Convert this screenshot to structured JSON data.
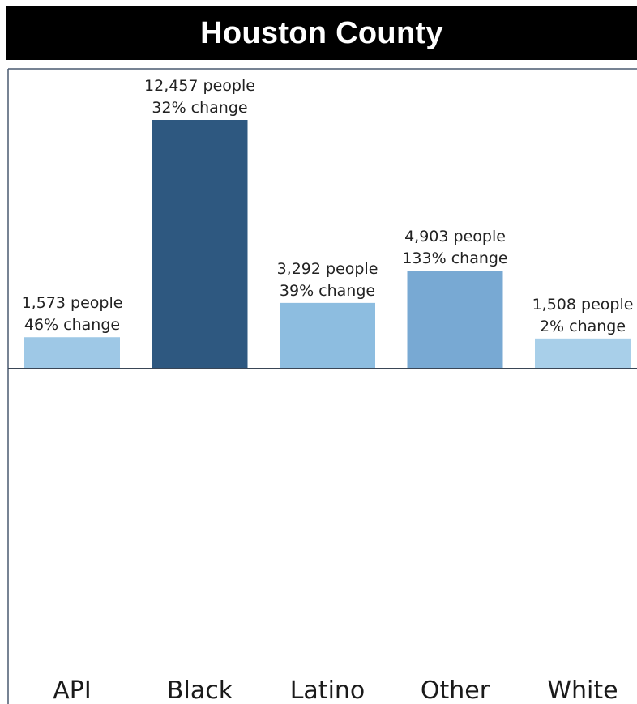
{
  "chart_data": {
    "type": "bar",
    "title": "Houston County",
    "categories": [
      "API",
      "Black",
      "Latino",
      "Other",
      "White"
    ],
    "values": [
      1573,
      12457,
      3292,
      4903,
      1508
    ],
    "people_labels": [
      "1,573 people",
      "12,457 people",
      "3,292 people",
      "4,903 people",
      "1,508 people"
    ],
    "change_labels": [
      "46% change",
      "32% change",
      "39% change",
      "133% change",
      "2% change"
    ],
    "percent_change": [
      46,
      32,
      39,
      133,
      2
    ],
    "colors": [
      "#9ec8e6",
      "#2e5880",
      "#8dbde0",
      "#78a9d3",
      "#a8cfe9"
    ],
    "ylim": [
      0,
      14000
    ],
    "grid": false,
    "legend": "none"
  }
}
